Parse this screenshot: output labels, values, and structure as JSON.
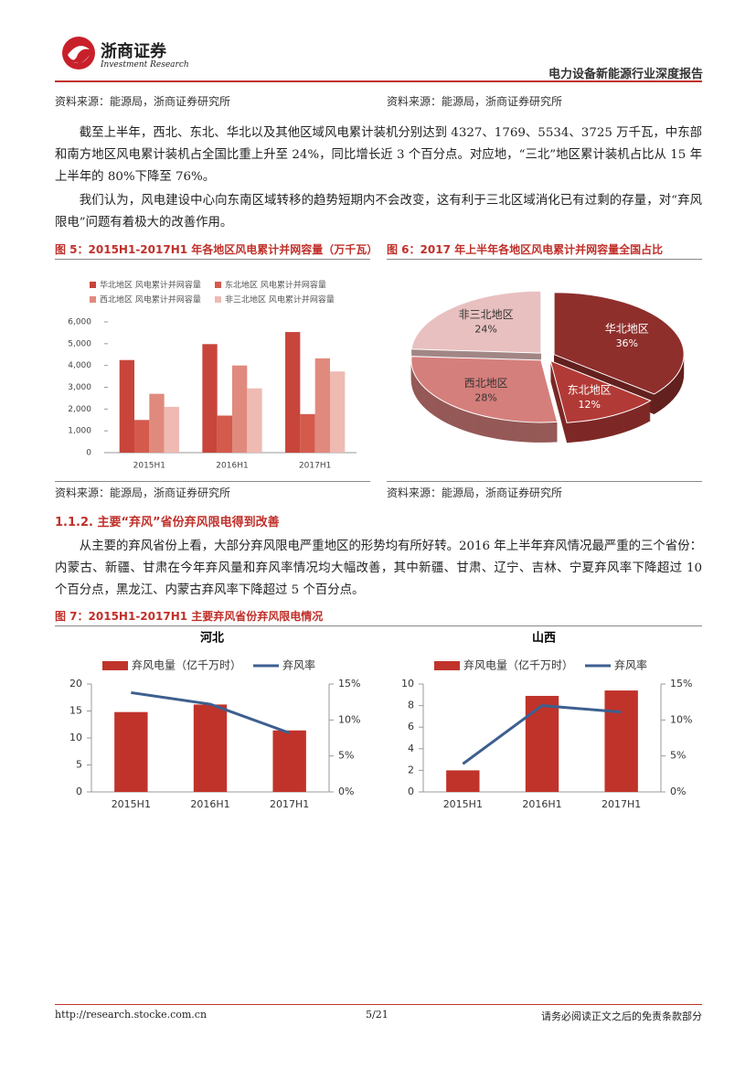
{
  "header": {
    "company": "浙商证券",
    "company_en": "Investment Research",
    "report_title": "电力设备新能源行业深度报告"
  },
  "sources_top": [
    "资料来源：能源局，浙商证券研究所",
    "资料来源：能源局，浙商证券研究所"
  ],
  "paragraphs": [
    "截至上半年，西北、东北、华北以及其他区域风电累计装机分别达到 4327、1769、5534、3725 万千瓦，中东部和南方地区风电累计装机占全国比重上升至 24%，同比增长近 3 个百分点。对应地，“三北”地区累计装机占比从 15 年上半年的 80%下降至 76%。",
    "我们认为，风电建设中心向东南区域转移的趋势短期内不会改变，这有利于三北区域消化已有过剩的存量，对“弃风限电”问题有着极大的改善作用。",
    "从主要的弃风省份上看，大部分弃风限电严重地区的形势均有所好转。2016 年上半年弃风情况最严重的三个省份：内蒙古、新疆、甘肃在今年弃风量和弃风率情况均大幅改善，其中新疆、甘肃、辽宁、吉林、宁夏弃风率下降超过 10 个百分点，黑龙江、内蒙古弃风率下降超过 5 个百分点。"
  ],
  "figures": [
    "图 5：2015H1-2017H1 年各地区风电累计并网容量（万千瓦）",
    "图 6：2017 年上半年各地区风电累计并网容量全国占比",
    "图 7：2015H1-2017H1 主要弃风省份弃风限电情况"
  ],
  "sources_bottom": [
    "资料来源：能源局，浙商证券研究所",
    "资料来源：能源局，浙商证券研究所"
  ],
  "section_heading": "1.1.2. 主要“弃风”省份弃风限电得到改善",
  "chart_data": [
    {
      "type": "bar",
      "categories": [
        "2015H1",
        "2016H1",
        "2017H1"
      ],
      "series": [
        {
          "name": "华北地区 风电累计并网容量",
          "color": "#c8453b",
          "values": [
            4250,
            4980,
            5534
          ]
        },
        {
          "name": "东北地区 风电累计并网容量",
          "color": "#d45a4c",
          "values": [
            1500,
            1700,
            1769
          ]
        },
        {
          "name": "西北地区 风电累计并网容量",
          "color": "#e08a7e",
          "values": [
            2700,
            4000,
            4327
          ]
        },
        {
          "name": "非三北地区 风电累计并网容量",
          "color": "#eebab2",
          "values": [
            2100,
            2950,
            3725
          ]
        }
      ],
      "ylim": [
        0,
        6000
      ],
      "yticks": [
        0,
        {
          "value": 1000,
          "label": "1,000"
        },
        {
          "value": 2000,
          "label": "2,000"
        },
        {
          "value": 3000,
          "label": "3,000"
        },
        {
          "value": 4000,
          "label": "4,000"
        },
        {
          "value": 5000,
          "label": "5,000"
        },
        {
          "value": 6000,
          "label": "6,000"
        }
      ]
    },
    {
      "type": "pie",
      "categories": [
        "华北地区",
        "东北地区",
        "西北地区",
        "非三北地区"
      ],
      "values": [
        36,
        12,
        28,
        24
      ],
      "value_labels": [
        "36%",
        "12%",
        "28%",
        "24%"
      ],
      "colors": [
        "#8e2f2c",
        "#b23a36",
        "#d57f7c",
        "#e8c0bf"
      ]
    },
    {
      "type": "combo",
      "title": "河北",
      "categories": [
        "2015H1",
        "2016H1",
        "2017H1"
      ],
      "series": [
        {
          "name": "弃风电量（亿千万时）",
          "type": "bar",
          "color": "#c0332a",
          "values": [
            14.8,
            16.2,
            11.4
          ]
        },
        {
          "name": "弃风率",
          "type": "line",
          "color": "#3d5f8f",
          "axis": "y2",
          "values": [
            13.8,
            12.2,
            8.2
          ]
        }
      ],
      "ylim": [
        0,
        20
      ],
      "yticks": [
        0,
        5,
        10,
        15,
        20
      ],
      "y2lim": [
        0,
        15
      ],
      "y2ticks": [
        {
          "value": 0,
          "label": "0%"
        },
        {
          "value": 5,
          "label": "5%"
        },
        {
          "value": 10,
          "label": "10%"
        },
        {
          "value": 15,
          "label": "15%"
        }
      ]
    },
    {
      "type": "combo",
      "title": "山西",
      "categories": [
        "2015H1",
        "2016H1",
        "2017H1"
      ],
      "series": [
        {
          "name": "弃风电量（亿千万时）",
          "type": "bar",
          "color": "#c0332a",
          "values": [
            2.0,
            8.9,
            9.4
          ]
        },
        {
          "name": "弃风率",
          "type": "line",
          "color": "#3d5f8f",
          "axis": "y2",
          "values": [
            3.9,
            12.0,
            11.1
          ]
        }
      ],
      "ylim": [
        0,
        10
      ],
      "yticks": [
        0,
        2,
        4,
        6,
        8,
        10
      ],
      "y2lim": [
        0,
        15
      ],
      "y2ticks": [
        {
          "value": 0,
          "label": "0%"
        },
        {
          "value": 5,
          "label": "5%"
        },
        {
          "value": 10,
          "label": "10%"
        },
        {
          "value": 15,
          "label": "15%"
        }
      ]
    }
  ],
  "footer": {
    "url": "http://research.stocke.com.cn",
    "page": "5/21",
    "disclaimer": "请务必阅读正文之后的免责条款部分"
  }
}
